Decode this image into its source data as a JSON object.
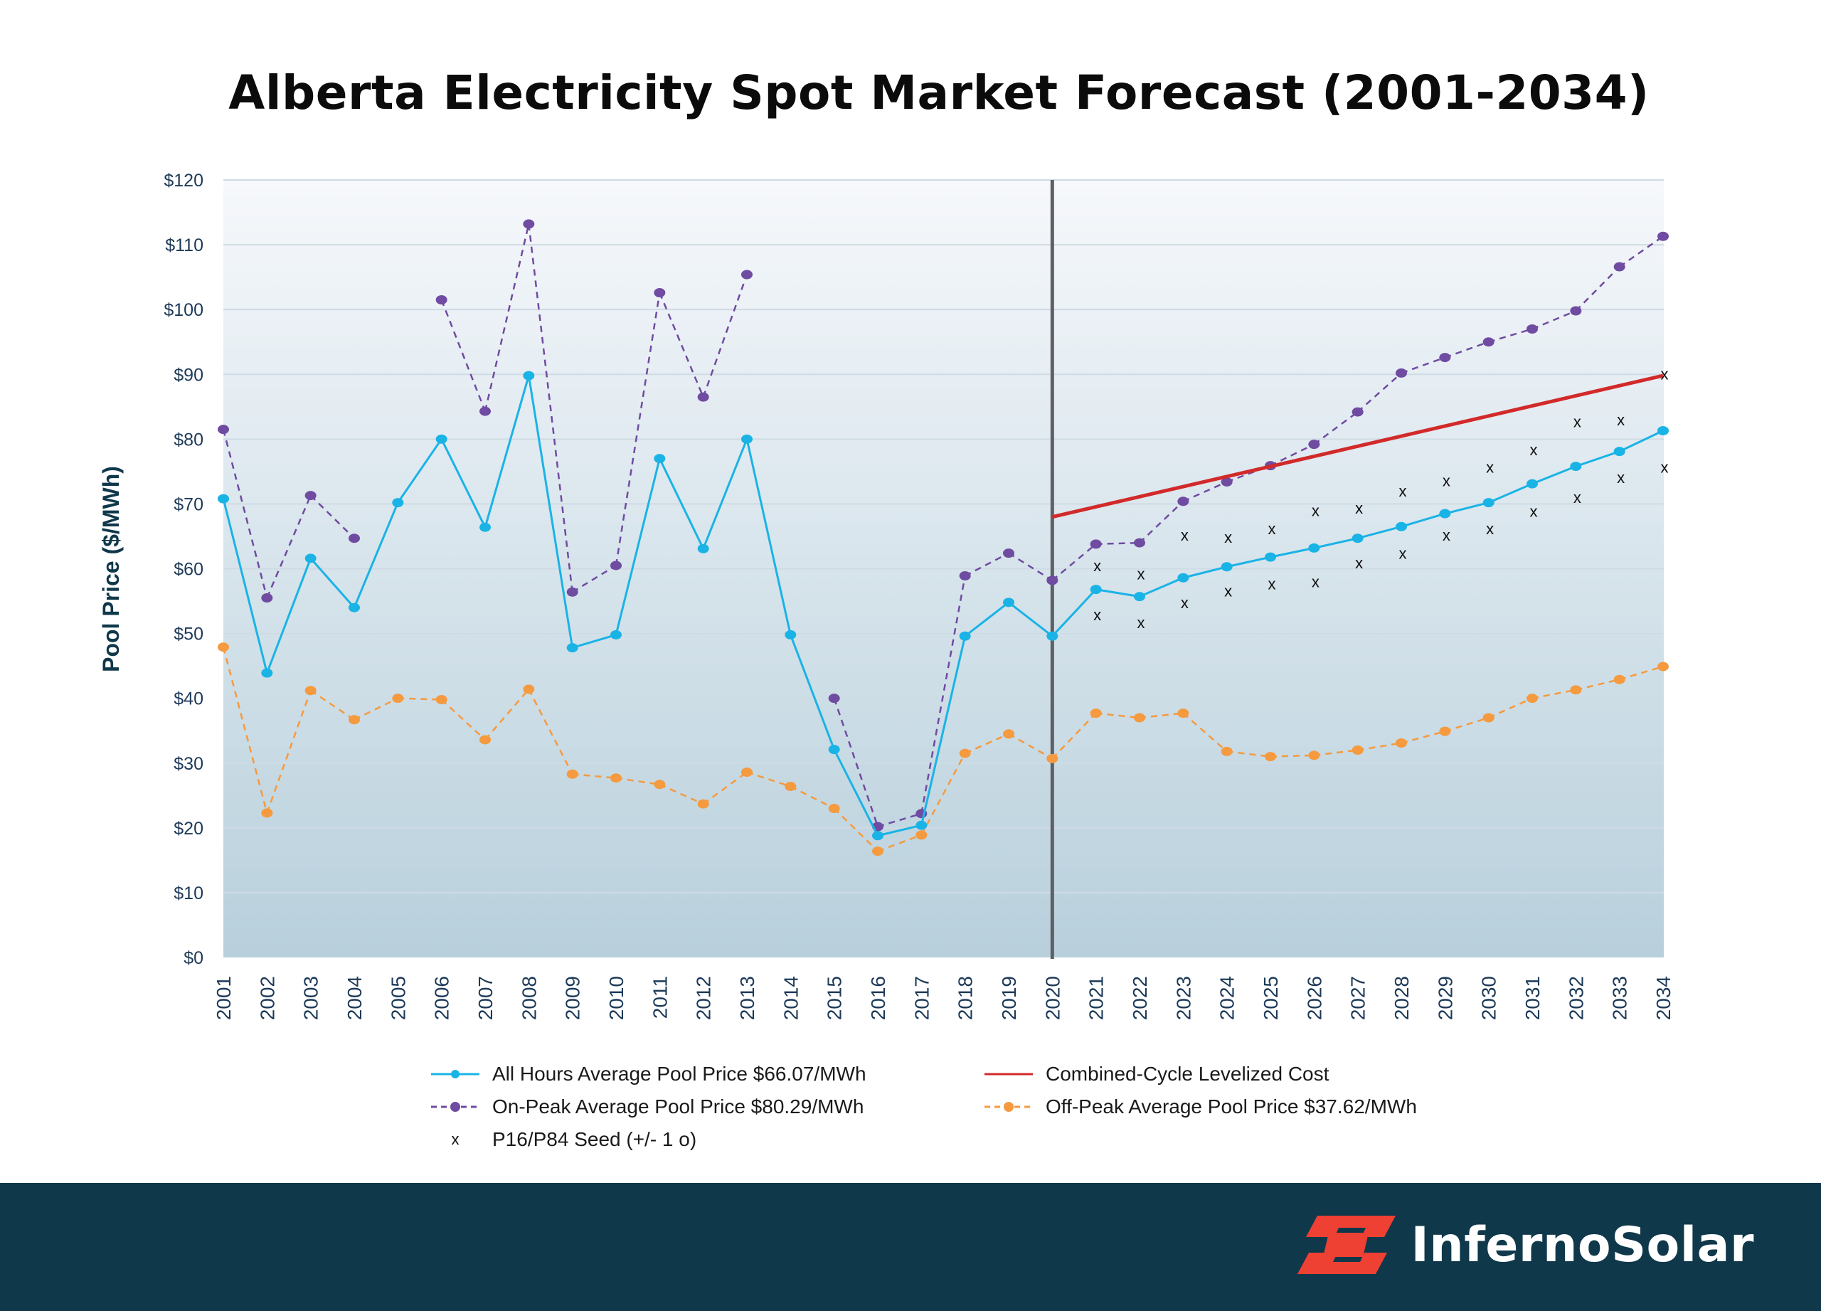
{
  "chart_data": {
    "type": "line",
    "title": "Alberta Electricity Spot Market Forecast (2001-2034)",
    "ylabel": "Pool Price ($/MWh)",
    "xlabel": "",
    "ylim": [
      0,
      120
    ],
    "yticks": [
      0,
      10,
      20,
      30,
      40,
      50,
      60,
      70,
      80,
      90,
      100,
      110,
      120
    ],
    "ytick_labels": [
      "$0",
      "$10",
      "$20",
      "$30",
      "$40",
      "$50",
      "$60",
      "$70",
      "$80",
      "$90",
      "$100",
      "$110",
      "$120"
    ],
    "categories": [
      "2001",
      "2002",
      "2003",
      "2004",
      "2005",
      "2006",
      "2007",
      "2008",
      "2009",
      "2010",
      "2011",
      "2012",
      "2013",
      "2014",
      "2015",
      "2016",
      "2017",
      "2018",
      "2019",
      "2020",
      "2021",
      "2022",
      "2023",
      "2024",
      "2025",
      "2026",
      "2027",
      "2028",
      "2029",
      "2030",
      "2031",
      "2032",
      "2033",
      "2034"
    ],
    "forecast_divider_year": "2020",
    "grid": true,
    "legend_position": "bottom",
    "series": [
      {
        "name": "All Hours Average Pool Price $66.07/MWh",
        "style": "solid-marker",
        "color": "#1ab3e6",
        "values": [
          70.8,
          43.9,
          61.6,
          54.0,
          70.2,
          80.0,
          66.4,
          89.8,
          47.8,
          49.8,
          77.0,
          63.1,
          80.0,
          49.8,
          32.1,
          18.8,
          20.4,
          49.6,
          54.8,
          49.6,
          56.8,
          55.7,
          58.6,
          60.3,
          61.8,
          63.2,
          64.7,
          66.5,
          68.5,
          70.2,
          73.1,
          75.8,
          78.1,
          81.3
        ]
      },
      {
        "name": "On-Peak Average Pool Price $80.29/MWh",
        "style": "dashed-marker",
        "color": "#6f4ba1",
        "values": [
          81.5,
          55.5,
          71.3,
          64.7,
          null,
          101.5,
          84.3,
          113.2,
          56.4,
          60.5,
          102.6,
          86.5,
          105.4,
          null,
          40.0,
          20.2,
          22.2,
          58.9,
          62.4,
          58.2,
          63.8,
          64.0,
          70.4,
          73.4,
          75.9,
          79.2,
          84.2,
          90.2,
          92.6,
          95.0,
          97.0,
          99.8,
          106.6,
          111.3
        ]
      },
      {
        "name": "Off-Peak Average Pool Price $37.62/MWh",
        "style": "dashed-marker",
        "color": "#f59a3e",
        "values": [
          47.9,
          22.3,
          41.2,
          36.7,
          40.0,
          39.8,
          33.6,
          41.4,
          28.3,
          27.7,
          26.7,
          23.7,
          28.6,
          26.4,
          23.0,
          16.4,
          18.9,
          31.5,
          34.5,
          30.7,
          37.7,
          37.0,
          37.7,
          31.8,
          31.0,
          31.2,
          32.0,
          33.1,
          34.9,
          37.0,
          40.0,
          41.3,
          42.9,
          44.9
        ]
      },
      {
        "name": "Combined-Cycle Levelized Cost",
        "style": "solid-line",
        "color": "#d22a2a",
        "x": [
          "2020",
          "2034"
        ],
        "values": [
          68.0,
          89.8
        ]
      },
      {
        "name": "P16/P84 Seed (+/- 1 o)",
        "style": "x-marker",
        "color": "#111111",
        "x": [
          "2021",
          "2022",
          "2023",
          "2024",
          "2025",
          "2026",
          "2027",
          "2028",
          "2029",
          "2030",
          "2031",
          "2032",
          "2033",
          "2034"
        ],
        "upper": [
          60.4,
          59.1,
          65.1,
          64.8,
          66.1,
          68.9,
          69.3,
          71.9,
          73.5,
          75.6,
          78.3,
          82.6,
          82.9,
          90.0
        ],
        "lower": [
          52.8,
          51.6,
          54.7,
          56.5,
          57.6,
          57.9,
          60.8,
          62.3,
          65.1,
          66.1,
          68.8,
          70.9,
          74.0,
          75.6
        ]
      }
    ]
  },
  "legend": {
    "items": [
      "All Hours Average Pool Price $66.07/MWh",
      "Combined-Cycle Levelized Cost",
      "On-Peak Average Pool Price $80.29/MWh",
      "Off-Peak Average Pool Price $37.62/MWh",
      "P16/P84 Seed (+/- 1 o)"
    ],
    "seed_marker": "x"
  },
  "footer": {
    "brand_name": "InfernoSolar",
    "brand_icon": "inferno-solar-logo-icon",
    "background_color": "#10384b",
    "accent_color": "#ee4033"
  }
}
